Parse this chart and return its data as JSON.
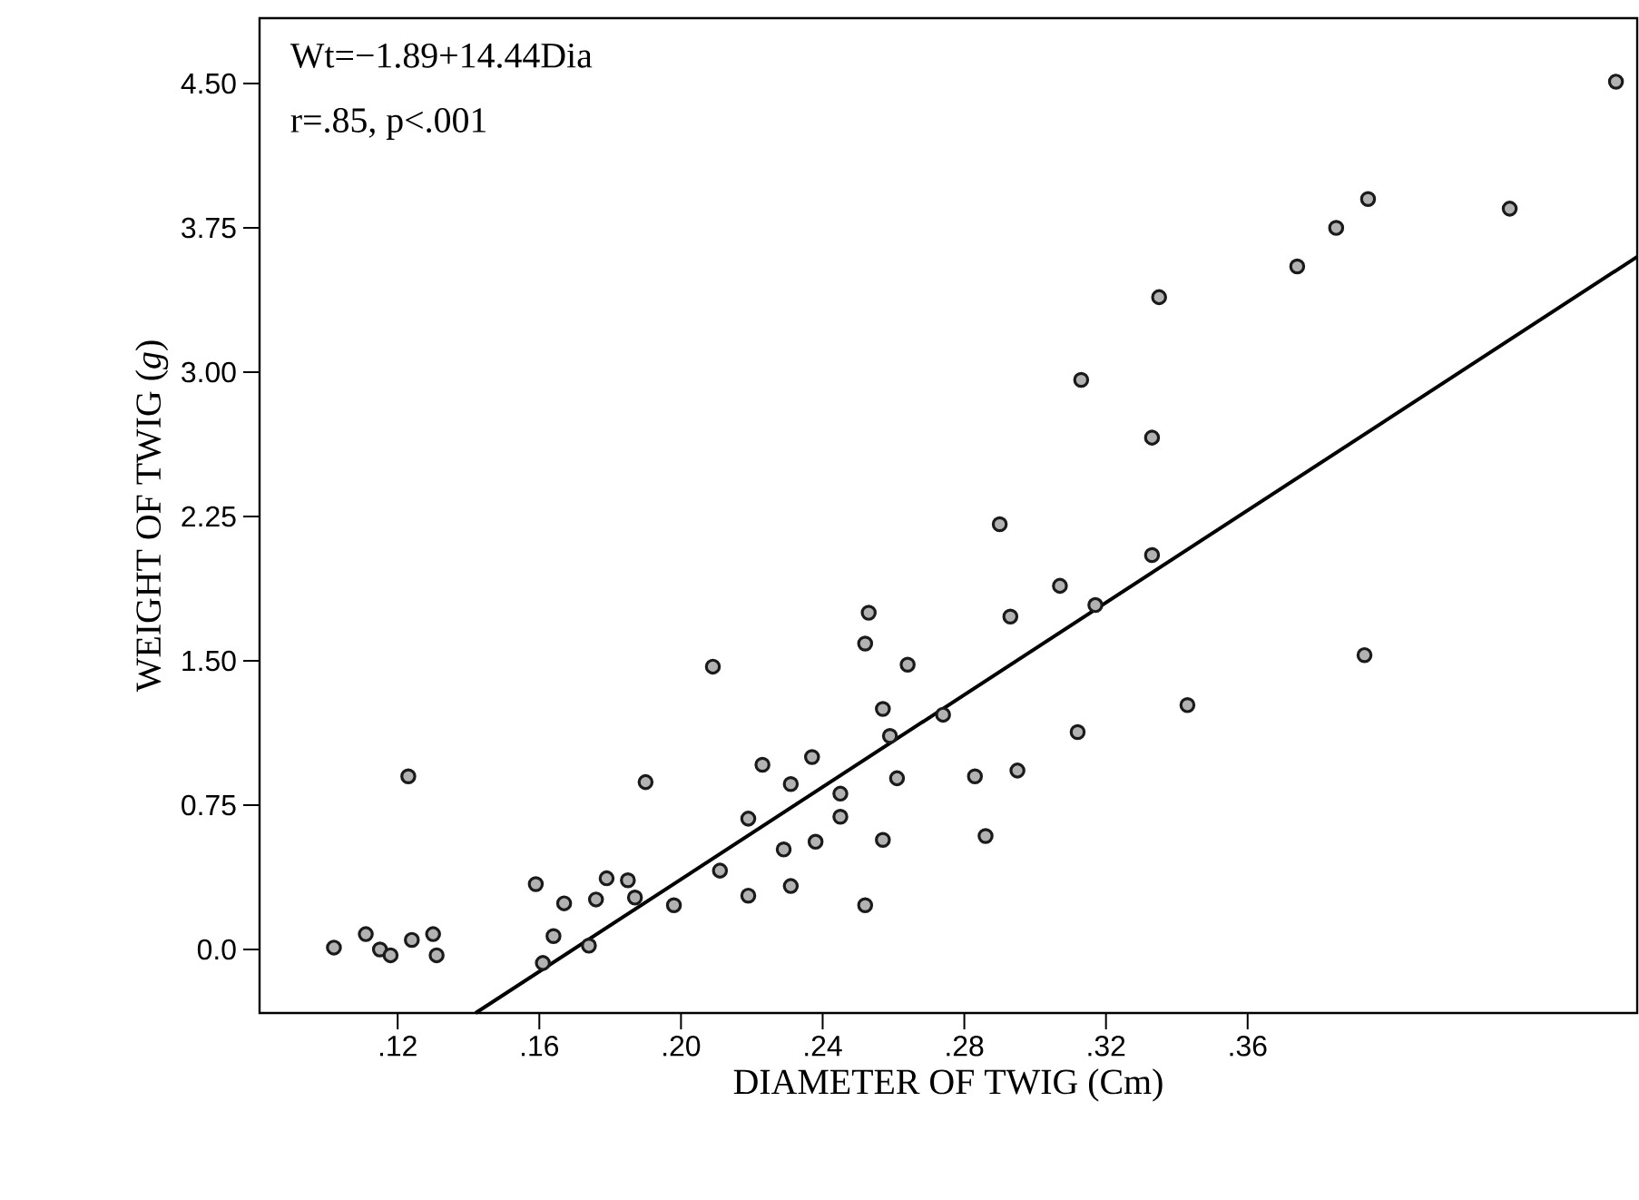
{
  "chart_data": {
    "type": "scatter",
    "xlabel": "DIAMETER OF TWIG (Cm)",
    "ylabel": "WEIGHT OF TWIG (*g*)",
    "annotations": [
      "Wt=−1.89+14.44Dia",
      "r=.85,   p<.001"
    ],
    "xlim": [
      0.081,
      0.47
    ],
    "ylim": [
      -0.33,
      4.84
    ],
    "xticks": [
      {
        "value": 0.12,
        "label": ".12"
      },
      {
        "value": 0.16,
        "label": ".16"
      },
      {
        "value": 0.2,
        "label": ".20"
      },
      {
        "value": 0.24,
        "label": ".24"
      },
      {
        "value": 0.28,
        "label": ".28"
      },
      {
        "value": 0.32,
        "label": ".32"
      },
      {
        "value": 0.36,
        "label": ".36"
      }
    ],
    "yticks": [
      {
        "value": 0,
        "label": "0.0"
      },
      {
        "value": 0.75,
        "label": "0.75"
      },
      {
        "value": 1.5,
        "label": "1.50"
      },
      {
        "value": 2.25,
        "label": "2.25"
      },
      {
        "value": 3,
        "label": "3.00"
      },
      {
        "value": 3.75,
        "label": "3.75"
      },
      {
        "value": 4.5,
        "label": "4.50"
      }
    ],
    "series": [
      {
        "color": "#1a1a1a",
        "marker": "circle",
        "x": [
          0.102,
          0.111,
          0.115,
          0.118,
          0.123,
          0.124,
          0.13,
          0.131,
          0.159,
          0.164,
          0.161,
          0.167,
          0.179,
          0.176,
          0.185,
          0.187,
          0.174,
          0.19,
          0.198,
          0.211,
          0.219,
          0.223,
          0.231,
          0.229,
          0.219,
          0.231,
          0.209,
          0.253,
          0.252,
          0.264,
          0.257,
          0.259,
          0.274,
          0.237,
          0.245,
          0.245,
          0.261,
          0.238,
          0.257,
          0.252,
          0.283,
          0.295,
          0.286,
          0.312,
          0.343,
          0.293,
          0.307,
          0.317,
          0.333,
          0.29,
          0.333,
          0.313,
          0.335,
          0.374,
          0.385,
          0.394,
          0.434,
          0.464,
          0.393
        ],
        "values": [
          0.01,
          0.08,
          0.0,
          -0.03,
          0.9,
          0.05,
          0.08,
          -0.03,
          0.34,
          0.07,
          -0.07,
          0.24,
          0.37,
          0.26,
          0.36,
          0.27,
          0.02,
          0.87,
          0.23,
          0.41,
          0.68,
          0.96,
          0.86,
          0.52,
          0.28,
          0.33,
          1.47,
          1.75,
          1.59,
          1.48,
          1.25,
          1.11,
          1.22,
          1.0,
          0.81,
          0.69,
          0.89,
          0.56,
          0.57,
          0.23,
          0.9,
          0.93,
          0.59,
          1.13,
          1.27,
          1.73,
          1.89,
          1.79,
          2.05,
          2.21,
          2.66,
          2.96,
          3.39,
          3.55,
          3.75,
          3.9,
          3.85,
          4.51,
          1.53
        ]
      },
      {
        "type": "line",
        "color": "#000000",
        "marker": "none",
        "line_style": "solid",
        "x": [
          0.142,
          0.47
        ],
        "values": [
          -0.33,
          3.6
        ]
      }
    ]
  }
}
